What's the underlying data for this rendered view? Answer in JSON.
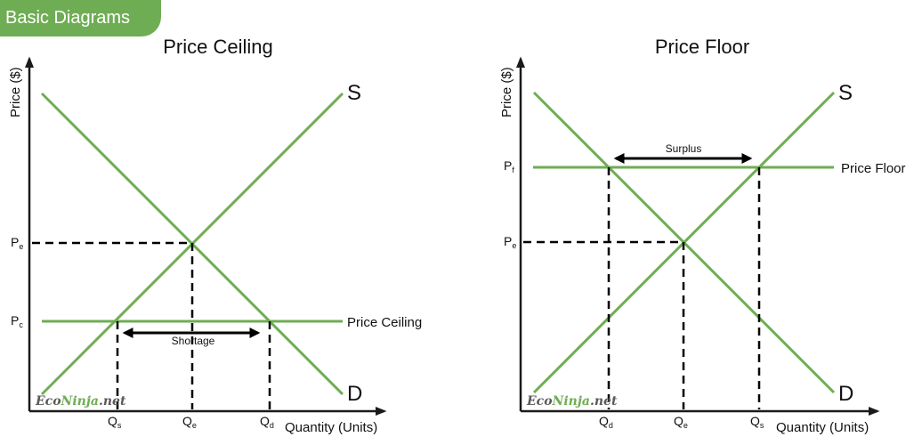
{
  "badge": {
    "label": "Basic Diagrams"
  },
  "colors": {
    "accent": "#6fad54",
    "axis": "#1a1a1a",
    "dashed": "#000000"
  },
  "panels": {
    "ceiling": {
      "title": "Price Ceiling",
      "y_axis_label": "Price ($)",
      "x_axis_label": "Quantity (Units)",
      "supply_label": "S",
      "demand_label": "D",
      "policy_line_label": "Price Ceiling",
      "gap_label": "Shortage",
      "price_ticks": [
        {
          "main": "P",
          "sub": "e"
        },
        {
          "main": "P",
          "sub": "c"
        }
      ],
      "quantity_ticks": [
        {
          "main": "Q",
          "sub": "s"
        },
        {
          "main": "Q",
          "sub": "e"
        },
        {
          "main": "Q",
          "sub": "d"
        }
      ],
      "watermark": {
        "part1": "Eco",
        "part2": "Ninja",
        "part3": ".net"
      }
    },
    "floor": {
      "title": "Price Floor",
      "y_axis_label": "Price ($)",
      "x_axis_label": "Quantity (Units)",
      "supply_label": "S",
      "demand_label": "D",
      "policy_line_label": "Price Floor",
      "gap_label": "Surplus",
      "price_ticks": [
        {
          "main": "P",
          "sub": "f"
        },
        {
          "main": "P",
          "sub": "e"
        }
      ],
      "quantity_ticks": [
        {
          "main": "Q",
          "sub": "d"
        },
        {
          "main": "Q",
          "sub": "e"
        },
        {
          "main": "Q",
          "sub": "s"
        }
      ],
      "watermark": {
        "part1": "Eco",
        "part2": "Ninja",
        "part3": ".net"
      }
    }
  }
}
